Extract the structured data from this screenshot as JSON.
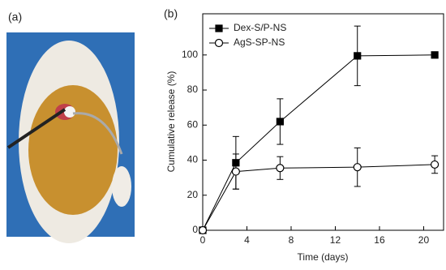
{
  "chart_data": {
    "type": "line",
    "panel_labels": [
      "(a)",
      "(b)"
    ],
    "xlabel": "Time (days)",
    "ylabel": "Cumulative release (%)",
    "x": [
      0,
      3,
      7,
      14,
      21
    ],
    "series": [
      {
        "name": "Dex-S/P-NS",
        "color": "#000000",
        "marker": "square",
        "filled": true,
        "values": [
          0,
          38.5,
          62,
          99.5,
          100
        ],
        "errors": [
          null,
          15,
          13,
          17,
          null
        ]
      },
      {
        "name": "AgS-SP-NS",
        "color": "#000000",
        "marker": "circle",
        "filled": false,
        "values": [
          0,
          33.5,
          35.5,
          36,
          37.5
        ],
        "errors": [
          null,
          10,
          6.5,
          11,
          5
        ]
      }
    ],
    "xlim": [
      0,
      21.8
    ],
    "xticks": [
      0,
      4,
      8,
      12,
      16,
      20
    ],
    "ylim": [
      0,
      123.5
    ],
    "yticks": [
      0,
      20,
      40,
      60,
      80,
      100
    ],
    "legend": "upper-left"
  }
}
